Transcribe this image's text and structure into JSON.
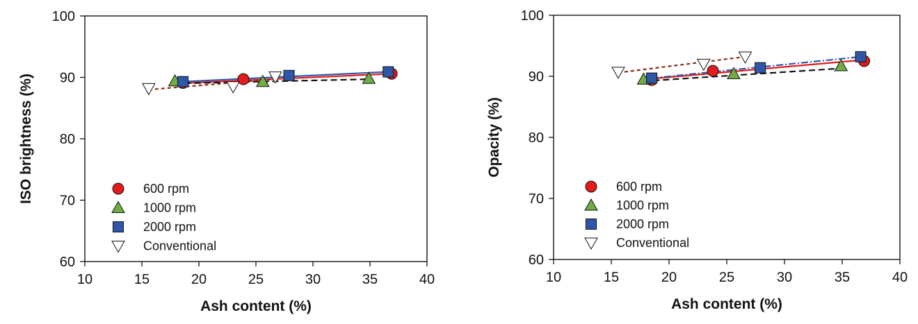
{
  "chart_data": [
    {
      "type": "scatter",
      "id": "left",
      "xlabel": "Ash content (%)",
      "ylabel": "ISO brightness (%)",
      "xlim": [
        10,
        40
      ],
      "ylim": [
        60,
        100
      ],
      "xticks": [
        10,
        15,
        20,
        25,
        30,
        35,
        40
      ],
      "yticks": [
        60,
        70,
        80,
        90,
        100
      ],
      "legend_position": "lower-left",
      "series": [
        {
          "name": "600 rpm",
          "marker": "circle",
          "color": "#e31b1b",
          "points": [
            {
              "x": 18.6,
              "y": 89.1
            },
            {
              "x": 23.9,
              "y": 89.7
            },
            {
              "x": 36.9,
              "y": 90.6
            }
          ],
          "fit": {
            "x": [
              18.0,
              37.0
            ],
            "y": [
              89.0,
              90.6
            ],
            "dash": "",
            "color": "#e31b1b"
          }
        },
        {
          "name": "1000 rpm",
          "marker": "triangle-up",
          "color": "#70ad47",
          "points": [
            {
              "x": 17.9,
              "y": 89.4
            },
            {
              "x": 25.6,
              "y": 89.3
            },
            {
              "x": 34.9,
              "y": 89.8
            }
          ],
          "fit": {
            "x": [
              17.9,
              34.9
            ],
            "y": [
              89.0,
              89.7
            ],
            "dash": "9,5",
            "color": "#111111"
          }
        },
        {
          "name": "2000 rpm",
          "marker": "square",
          "color": "#2e57a8",
          "points": [
            {
              "x": 18.6,
              "y": 89.3
            },
            {
              "x": 27.9,
              "y": 90.3
            },
            {
              "x": 36.6,
              "y": 90.9
            }
          ],
          "fit": {
            "x": [
              18.6,
              36.6
            ],
            "y": [
              89.3,
              90.9
            ],
            "dash": "",
            "color": "#2e57a8"
          }
        },
        {
          "name": "Conventional",
          "marker": "triangle-down",
          "color": "#ffffff",
          "points": [
            {
              "x": 15.6,
              "y": 88.2
            },
            {
              "x": 23.0,
              "y": 88.5
            },
            {
              "x": 26.7,
              "y": 90.1
            }
          ],
          "fit": {
            "x": [
              15.6,
              26.7
            ],
            "y": [
              88.0,
              89.7
            ],
            "dash": "5,4",
            "color": "#8b2a1a"
          }
        }
      ]
    },
    {
      "type": "scatter",
      "id": "right",
      "xlabel": "Ash content (%)",
      "ylabel": "Opacity (%)",
      "xlim": [
        10,
        40
      ],
      "ylim": [
        60,
        100
      ],
      "xticks": [
        10,
        15,
        20,
        25,
        30,
        35,
        40
      ],
      "yticks": [
        60,
        70,
        80,
        90,
        100
      ],
      "legend_position": "lower-left",
      "series": [
        {
          "name": "600 rpm",
          "marker": "circle",
          "color": "#e31b1b",
          "points": [
            {
              "x": 18.5,
              "y": 89.4
            },
            {
              "x": 23.8,
              "y": 90.9
            },
            {
              "x": 36.9,
              "y": 92.5
            }
          ],
          "fit": {
            "x": [
              18.5,
              36.9
            ],
            "y": [
              89.6,
              92.7
            ],
            "dash": "",
            "color": "#e31b1b"
          }
        },
        {
          "name": "1000 rpm",
          "marker": "triangle-up",
          "color": "#70ad47",
          "points": [
            {
              "x": 17.8,
              "y": 89.5
            },
            {
              "x": 25.6,
              "y": 90.4
            },
            {
              "x": 34.9,
              "y": 91.7
            }
          ],
          "fit": {
            "x": [
              17.8,
              34.9
            ],
            "y": [
              89.2,
              91.3
            ],
            "dash": "9,5",
            "color": "#111111"
          }
        },
        {
          "name": "2000 rpm",
          "marker": "square",
          "color": "#2e57a8",
          "points": [
            {
              "x": 18.5,
              "y": 89.7
            },
            {
              "x": 27.9,
              "y": 91.4
            },
            {
              "x": 36.6,
              "y": 93.2
            }
          ],
          "fit": {
            "x": [
              18.5,
              36.6
            ],
            "y": [
              89.7,
              93.2
            ],
            "dash": "10,3,2,3",
            "color": "#2e57a8"
          }
        },
        {
          "name": "Conventional",
          "marker": "triangle-down",
          "color": "#ffffff",
          "points": [
            {
              "x": 15.6,
              "y": 90.7
            },
            {
              "x": 23.0,
              "y": 92.0
            },
            {
              "x": 26.6,
              "y": 93.2
            }
          ],
          "fit": {
            "x": [
              15.6,
              26.6
            ],
            "y": [
              90.6,
              93.2
            ],
            "dash": "5,4",
            "color": "#8b2a1a"
          }
        }
      ]
    }
  ]
}
